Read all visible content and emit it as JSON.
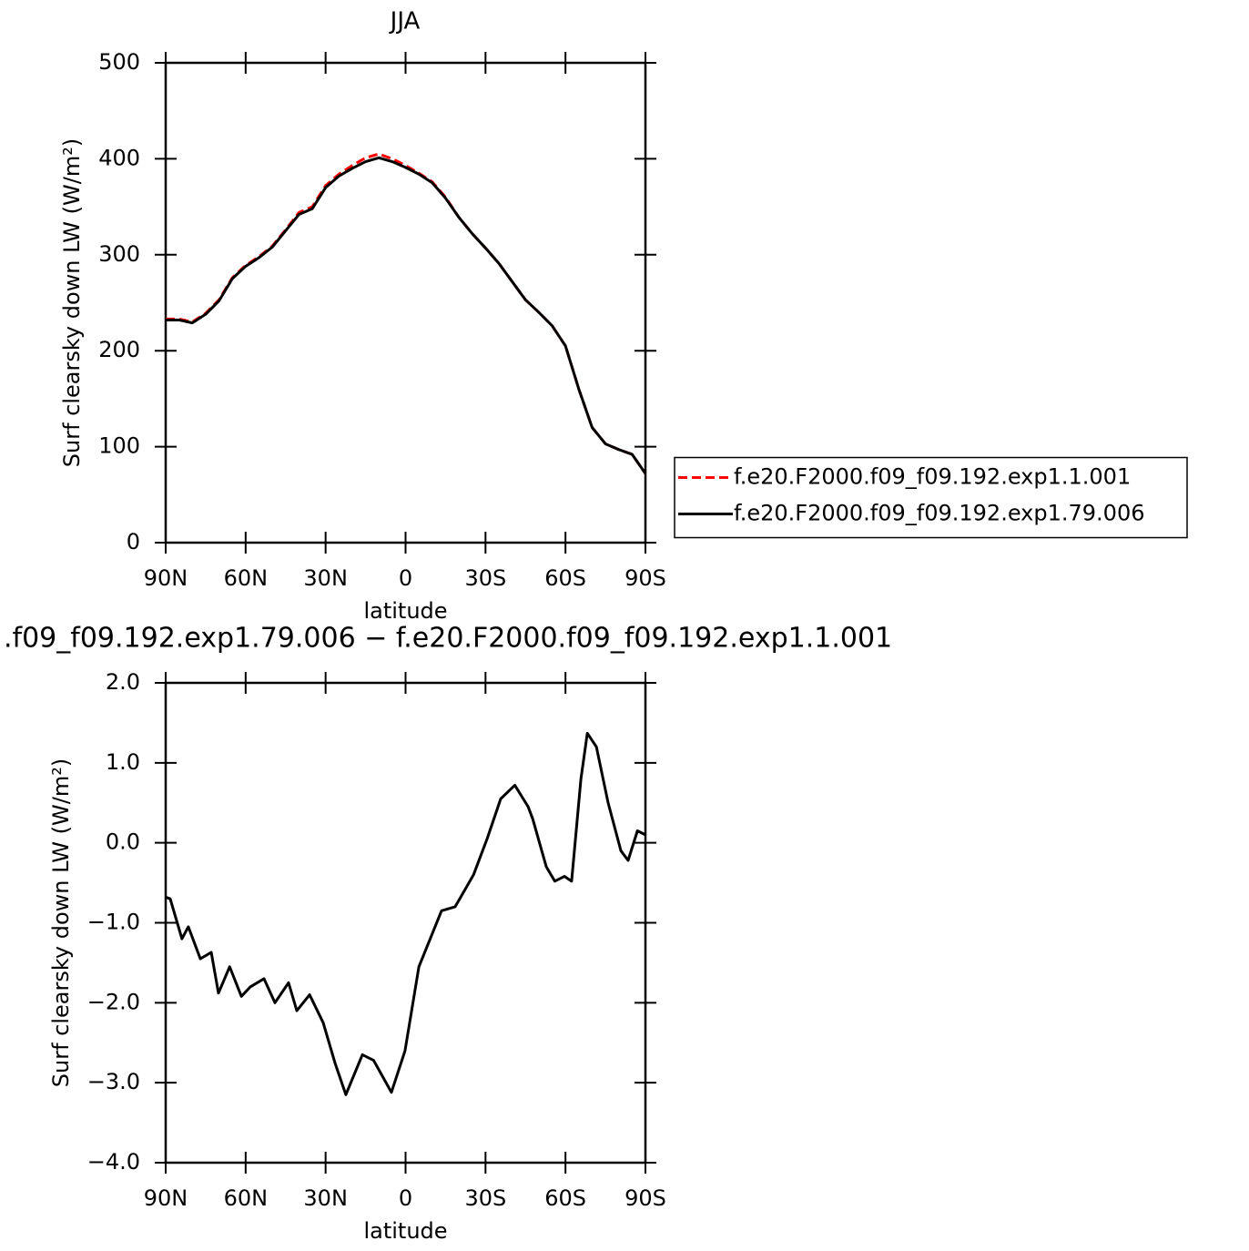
{
  "chart_data": [
    {
      "type": "line",
      "title": "JJA",
      "x_label": "latitude",
      "y_label": "Surf clearsky down LW (W/m²)",
      "x": [
        90,
        85,
        80,
        75,
        70,
        65,
        60,
        55,
        50,
        45,
        40,
        35,
        30,
        25,
        20,
        15,
        10,
        5,
        0,
        -5,
        -10,
        -15,
        -20,
        -25,
        -30,
        -35,
        -40,
        -45,
        -50,
        -55,
        -60,
        -65,
        -70,
        -75,
        -80,
        -85,
        -90
      ],
      "series": [
        {
          "name": "f.e20.F2000.f09_f09.192.exp1.1.001",
          "color": "#ff0000",
          "line_style": "dashed",
          "values": [
            233,
            233,
            230,
            239,
            253,
            276,
            289,
            298,
            309,
            326,
            344,
            350,
            372,
            384,
            393,
            401,
            405,
            400,
            393,
            385,
            376,
            360,
            339,
            322,
            307,
            291,
            272,
            253,
            240,
            226,
            205,
            160,
            120,
            103,
            97,
            92,
            72
          ]
        },
        {
          "name": "f.e20.F2000.f09_f09.192.exp1.79.006",
          "color": "#000000",
          "line_style": "solid",
          "values": [
            232,
            232,
            229,
            238,
            252,
            275,
            288,
            297,
            308,
            325,
            342,
            348,
            370,
            382,
            390,
            397,
            401,
            397,
            391,
            384,
            375,
            359,
            339,
            322,
            307,
            291,
            272,
            253,
            240,
            226,
            205,
            160,
            120,
            103,
            97,
            92,
            72
          ]
        }
      ],
      "xlim": [
        90,
        -90
      ],
      "xticks": [
        {
          "value": 90,
          "label": "90N"
        },
        {
          "value": 60,
          "label": "60N"
        },
        {
          "value": 30,
          "label": "30N"
        },
        0,
        {
          "value": -30,
          "label": "30S"
        },
        {
          "value": -60,
          "label": "60S"
        },
        {
          "value": -90,
          "label": "90S"
        }
      ],
      "ylim": [
        0,
        500
      ],
      "yticks": [
        0,
        100,
        200,
        300,
        400,
        500
      ],
      "legend": "right"
    },
    {
      "type": "line",
      "title": ".f09_f09.192.exp1.79.006 − f.e20.F2000.f09_f09.192.exp1.1.001",
      "x_label": "latitude",
      "y_label": "Surf clearsky down LW (W/m²)",
      "x": [
        90,
        88.3,
        83.9,
        81.5,
        77,
        72.9,
        70.2,
        66,
        61.6,
        58.2,
        53.1,
        49,
        43.9,
        40.8,
        36,
        30.9,
        26.5,
        22.4,
        16.2,
        12,
        5.3,
        0.2,
        -5,
        -13.5,
        -18.6,
        -25.5,
        -30.6,
        -35.7,
        -41,
        -46,
        -47.7,
        -52.8,
        -56,
        -59.6,
        -62.3,
        -65.8,
        -68.2,
        -71.6,
        -76,
        -80.8,
        -83.5,
        -87,
        -90
      ],
      "series": [
        {
          "color": "#000000",
          "line_style": "solid",
          "values": [
            -0.68,
            -0.7,
            -1.2,
            -1.05,
            -1.45,
            -1.37,
            -1.88,
            -1.55,
            -1.92,
            -1.8,
            -1.7,
            -2.0,
            -1.75,
            -2.1,
            -1.9,
            -2.25,
            -2.75,
            -3.15,
            -2.65,
            -2.72,
            -3.12,
            -2.6,
            -1.55,
            -0.85,
            -0.8,
            -0.4,
            0.05,
            0.55,
            0.72,
            0.45,
            0.3,
            -0.3,
            -0.48,
            -0.42,
            -0.48,
            0.8,
            1.37,
            1.2,
            0.5,
            -0.1,
            -0.22,
            0.15,
            0.1
          ]
        }
      ],
      "xlim": [
        90,
        -90
      ],
      "xticks": [
        {
          "value": 90,
          "label": "90N"
        },
        {
          "value": 60,
          "label": "60N"
        },
        {
          "value": 30,
          "label": "30N"
        },
        0,
        {
          "value": -30,
          "label": "30S"
        },
        {
          "value": -60,
          "label": "60S"
        },
        {
          "value": -90,
          "label": "90S"
        }
      ],
      "ylim": [
        -4,
        2
      ],
      "yticks": [
        {
          "value": -4,
          "label": "−4.0"
        },
        {
          "value": -3,
          "label": "−3.0"
        },
        {
          "value": -2,
          "label": "−2.0"
        },
        {
          "value": -1,
          "label": "−1.0"
        },
        {
          "value": 0,
          "label": "0.0"
        },
        {
          "value": 1,
          "label": "1.0"
        },
        {
          "value": 2,
          "label": "2.0"
        }
      ]
    }
  ]
}
